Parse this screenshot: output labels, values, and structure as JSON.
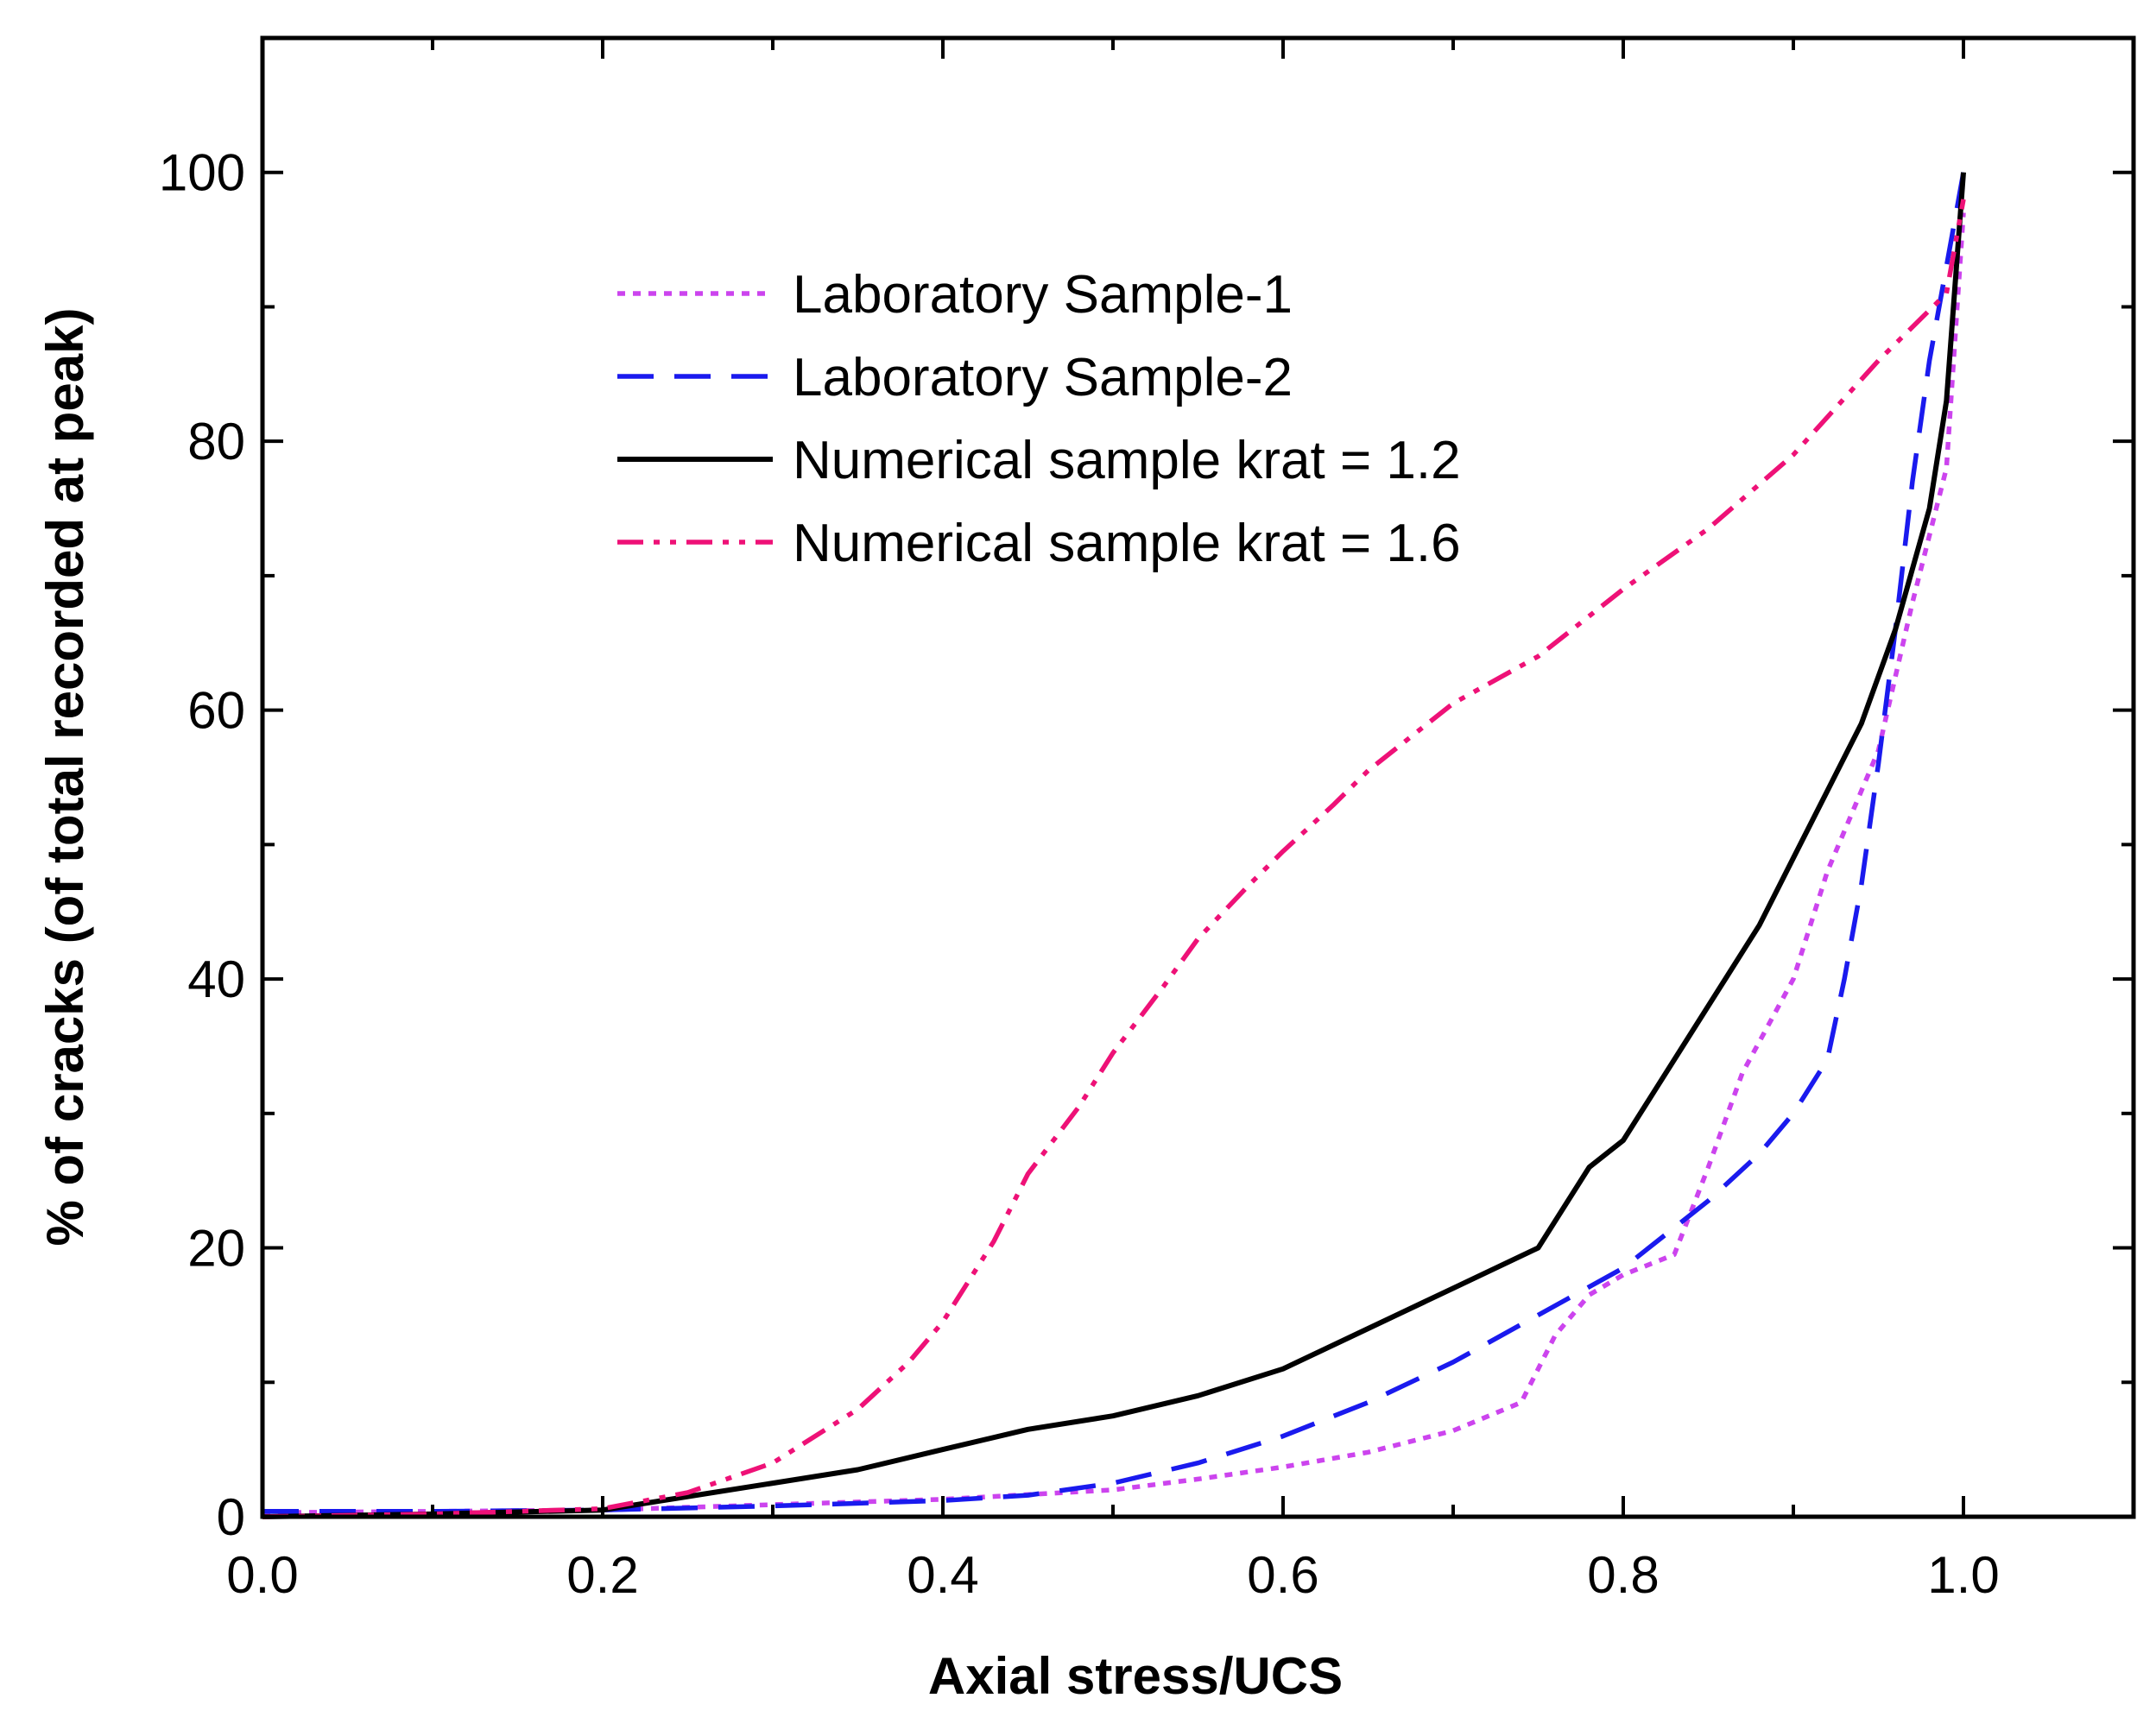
{
  "chart_data": {
    "type": "line",
    "title": "",
    "xlabel": "Axial stress/UCS",
    "ylabel": "% of cracks (of total recorded at peak)",
    "xlim": [
      0,
      1.1
    ],
    "ylim": [
      0,
      110
    ],
    "xticks": [
      0.0,
      0.2,
      0.4,
      0.6,
      0.8,
      1.0
    ],
    "xtick_labels": [
      "0.0",
      "0.2",
      "0.4",
      "0.6",
      "0.8",
      "1.0"
    ],
    "yticks": [
      0,
      20,
      40,
      60,
      80,
      100
    ],
    "ytick_labels": [
      "0",
      "20",
      "40",
      "60",
      "80",
      "100"
    ],
    "grid": false,
    "legend_position": "top-center",
    "series": [
      {
        "name": "Laboratory Sample-1",
        "color": "#cc44ee",
        "style": "dotted",
        "x": [
          0,
          0.1,
          0.2,
          0.3,
          0.4,
          0.5,
          0.55,
          0.6,
          0.65,
          0.7,
          0.74,
          0.76,
          0.78,
          0.8,
          0.83,
          0.85,
          0.87,
          0.9,
          0.92,
          0.95,
          0.97,
          0.99,
          1.0
        ],
        "y": [
          0.3,
          0.4,
          0.5,
          0.9,
          1.3,
          2.0,
          2.8,
          3.7,
          4.8,
          6.4,
          8.5,
          13.5,
          16.5,
          18.0,
          19.5,
          26.0,
          33.0,
          40.0,
          48.0,
          57.0,
          68.0,
          78.0,
          97.0
        ]
      },
      {
        "name": "Laboratory Sample-2",
        "color": "#1a1aee",
        "style": "dashed",
        "x": [
          0,
          0.1,
          0.2,
          0.3,
          0.4,
          0.45,
          0.5,
          0.55,
          0.6,
          0.65,
          0.7,
          0.75,
          0.8,
          0.85,
          0.88,
          0.9,
          0.92,
          0.93,
          0.94,
          0.95,
          0.96,
          0.97,
          0.98,
          0.99,
          1.0
        ],
        "y": [
          0.4,
          0.4,
          0.5,
          0.8,
          1.2,
          1.6,
          2.5,
          4.0,
          6.0,
          8.5,
          11.5,
          15.0,
          18.5,
          23.5,
          27.0,
          30.0,
          34.0,
          40.0,
          47.0,
          56.0,
          66.0,
          77.0,
          86.0,
          93.0,
          100.0
        ]
      },
      {
        "name": "Numerical sample krat = 1.2",
        "color": "#000000",
        "style": "solid",
        "x": [
          0,
          0.1,
          0.2,
          0.25,
          0.3,
          0.35,
          0.4,
          0.45,
          0.5,
          0.55,
          0.6,
          0.65,
          0.7,
          0.75,
          0.78,
          0.8,
          0.82,
          0.84,
          0.86,
          0.88,
          0.9,
          0.92,
          0.94,
          0.96,
          0.98,
          0.99,
          1.0
        ],
        "y": [
          0,
          0.2,
          0.5,
          1.5,
          2.5,
          3.5,
          5.0,
          6.5,
          7.5,
          9.0,
          11.0,
          14.0,
          17.0,
          20.0,
          26.0,
          28.0,
          32.0,
          36.0,
          40.0,
          44.0,
          49.0,
          54.0,
          59.0,
          66.0,
          75.0,
          83.0,
          100.0
        ]
      },
      {
        "name": "Numerical sample krat = 1.6",
        "color": "#ee1177",
        "style": "dashdot",
        "x": [
          0,
          0.1,
          0.2,
          0.25,
          0.3,
          0.35,
          0.38,
          0.4,
          0.43,
          0.45,
          0.48,
          0.5,
          0.53,
          0.55,
          0.58,
          0.6,
          0.63,
          0.65,
          0.7,
          0.75,
          0.8,
          0.85,
          0.9,
          0.95,
          0.99,
          1.0
        ],
        "y": [
          0,
          0.2,
          0.6,
          1.8,
          4.0,
          8.0,
          11.5,
          14.5,
          20.5,
          25.5,
          30.5,
          34.5,
          39.5,
          43.0,
          47.0,
          49.5,
          53.0,
          55.5,
          60.5,
          64.0,
          69.0,
          73.5,
          79.0,
          86.0,
          91.0,
          98.0
        ]
      }
    ]
  }
}
